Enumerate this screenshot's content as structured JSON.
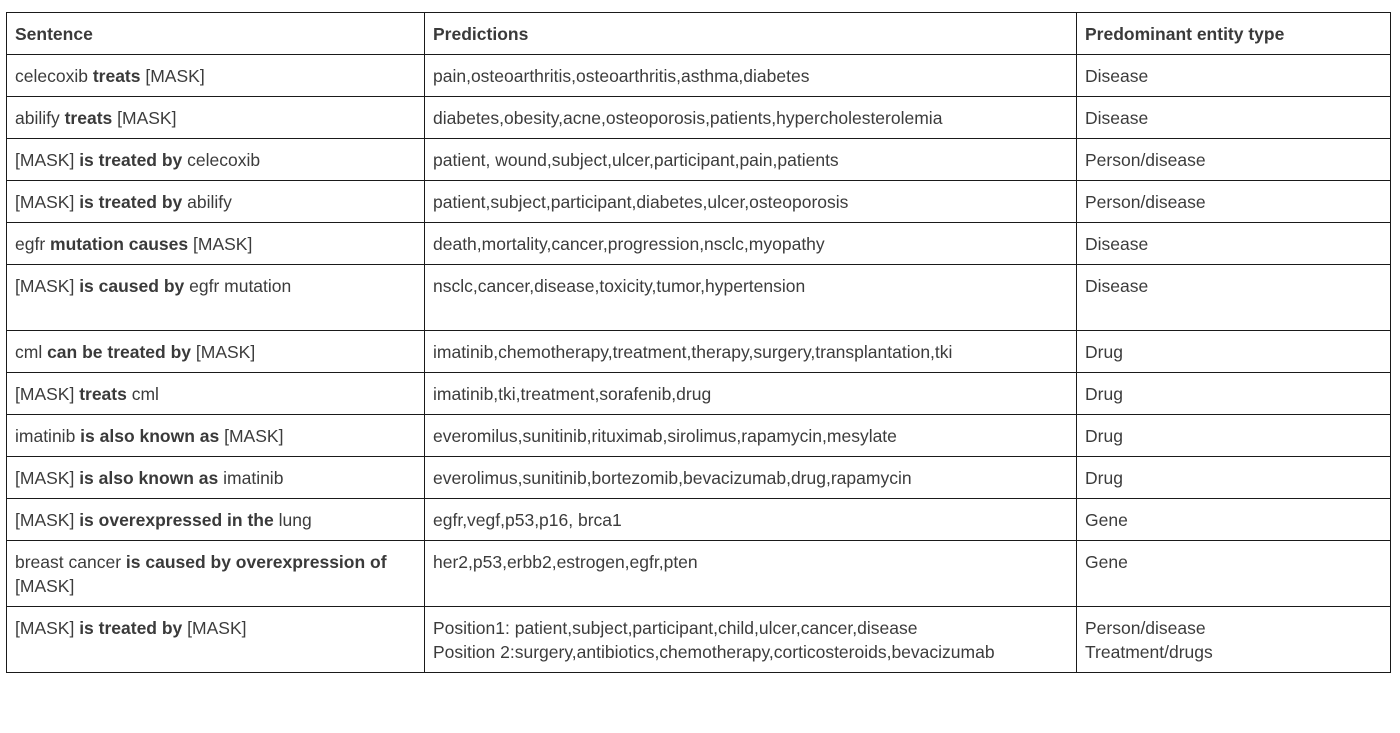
{
  "columns": [
    "Sentence",
    "Predictions",
    "Predominant entity type"
  ],
  "rows": [
    {
      "sentence": [
        {
          "t": "celecoxib ",
          "bold": false
        },
        {
          "t": "treats",
          "bold": true
        },
        {
          "t": " [MASK]",
          "bold": false
        }
      ],
      "predictions": [
        "pain,osteoarthritis,osteoarthritis,asthma,diabetes"
      ],
      "entity": [
        "Disease"
      ]
    },
    {
      "sentence": [
        {
          "t": "abilify ",
          "bold": false
        },
        {
          "t": "treats",
          "bold": true
        },
        {
          "t": " [MASK]",
          "bold": false
        }
      ],
      "predictions": [
        "diabetes,obesity,acne,osteoporosis,patients,hypercholesterolemia"
      ],
      "entity": [
        "Disease"
      ]
    },
    {
      "sentence": [
        {
          "t": "[MASK] ",
          "bold": false
        },
        {
          "t": "is treated by",
          "bold": true
        },
        {
          "t": " celecoxib",
          "bold": false
        }
      ],
      "predictions": [
        "patient, wound,subject,ulcer,participant,pain,patients"
      ],
      "entity": [
        "Person/disease"
      ]
    },
    {
      "sentence": [
        {
          "t": "[MASK] ",
          "bold": false
        },
        {
          "t": "is treated by",
          "bold": true
        },
        {
          "t": " abilify",
          "bold": false
        }
      ],
      "predictions": [
        "patient,subject,participant,diabetes,ulcer,osteoporosis"
      ],
      "entity": [
        "Person/disease"
      ]
    },
    {
      "sentence": [
        {
          "t": "egfr ",
          "bold": false
        },
        {
          "t": "mutation causes",
          "bold": true
        },
        {
          "t": " [MASK]",
          "bold": false
        }
      ],
      "predictions": [
        "death,mortality,cancer,progression,nsclc,myopathy"
      ],
      "entity": [
        "Disease"
      ]
    },
    {
      "sentence": [
        {
          "t": "[MASK] ",
          "bold": false
        },
        {
          "t": "is caused by",
          "bold": true
        },
        {
          "t": " egfr mutation",
          "bold": false
        }
      ],
      "predictions": [
        "nsclc,cancer,disease,toxicity,tumor,hypertension"
      ],
      "entity": [
        "Disease"
      ],
      "tall": true
    },
    {
      "sentence": [
        {
          "t": "cml ",
          "bold": false
        },
        {
          "t": "can be treated by",
          "bold": true
        },
        {
          "t": " [MASK]",
          "bold": false
        }
      ],
      "predictions": [
        "imatinib,chemotherapy,treatment,therapy,surgery,transplantation,tki"
      ],
      "entity": [
        "Drug"
      ]
    },
    {
      "sentence": [
        {
          "t": "[MASK] ",
          "bold": false
        },
        {
          "t": "treats",
          "bold": true
        },
        {
          "t": " cml",
          "bold": false
        }
      ],
      "predictions": [
        "imatinib,tki,treatment,sorafenib,drug"
      ],
      "entity": [
        "Drug"
      ]
    },
    {
      "sentence": [
        {
          "t": "imatinib ",
          "bold": false
        },
        {
          "t": "is also known as",
          "bold": true
        },
        {
          "t": " [MASK]",
          "bold": false
        }
      ],
      "predictions": [
        "everomilus,sunitinib,rituximab,sirolimus,rapamycin,mesylate"
      ],
      "entity": [
        "Drug"
      ]
    },
    {
      "sentence": [
        {
          "t": "[MASK] ",
          "bold": false
        },
        {
          "t": "is also known as",
          "bold": true
        },
        {
          "t": " imatinib",
          "bold": false
        }
      ],
      "predictions": [
        "everolimus,sunitinib,bortezomib,bevacizumab,drug,rapamycin"
      ],
      "entity": [
        "Drug"
      ]
    },
    {
      "sentence": [
        {
          "t": "[MASK] ",
          "bold": false
        },
        {
          "t": "is overexpressed in the",
          "bold": true
        },
        {
          "t": " lung",
          "bold": false
        }
      ],
      "predictions": [
        "egfr,vegf,p53,p16, brca1"
      ],
      "entity": [
        "Gene"
      ]
    },
    {
      "sentence": [
        {
          "t": "breast cancer ",
          "bold": false
        },
        {
          "t": "is caused by overexpression of",
          "bold": true
        },
        {
          "t": " [MASK]",
          "bold": false
        }
      ],
      "predictions": [
        "her2,p53,erbb2,estrogen,egfr,pten"
      ],
      "entity": [
        "Gene"
      ]
    },
    {
      "sentence": [
        {
          "t": "[MASK] ",
          "bold": false
        },
        {
          "t": "is treated by",
          "bold": true
        },
        {
          "t": " [MASK]",
          "bold": false
        }
      ],
      "predictions": [
        "Position1: patient,subject,participant,child,ulcer,cancer,disease",
        "Position 2:surgery,antibiotics,chemotherapy,corticosteroids,bevacizumab"
      ],
      "entity": [
        "Person/disease",
        "Treatment/drugs"
      ]
    }
  ]
}
